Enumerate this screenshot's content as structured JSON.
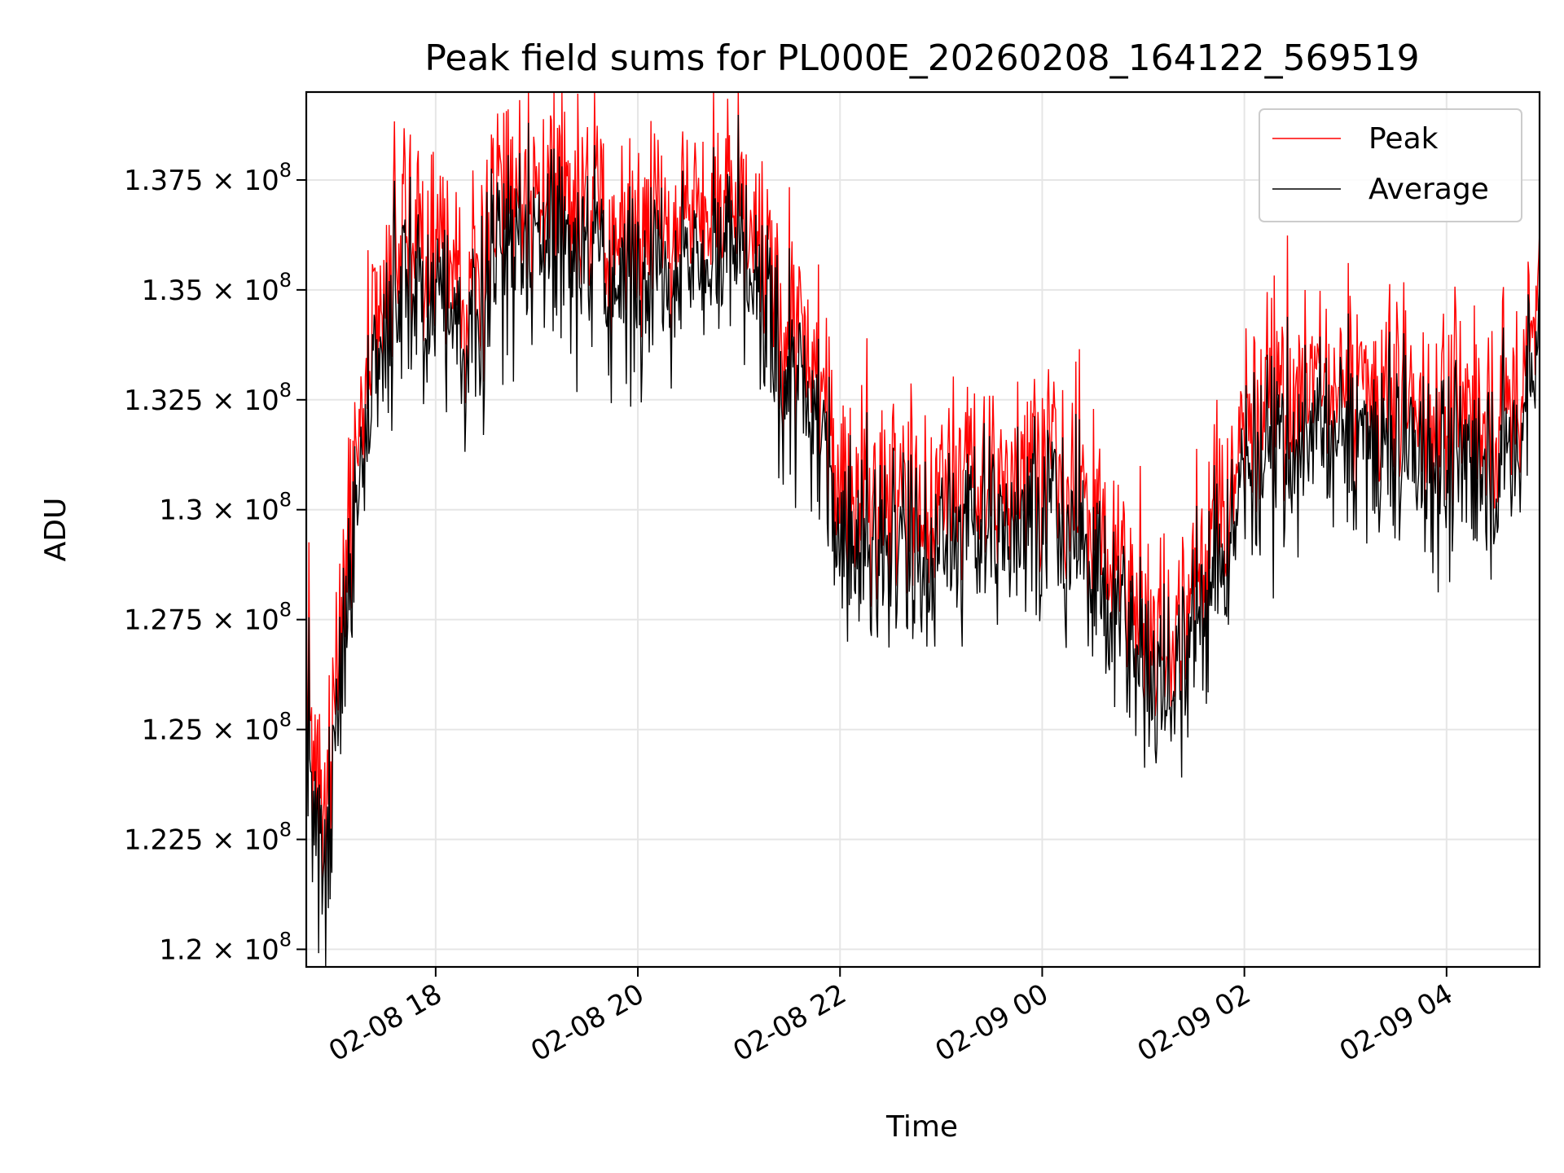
{
  "chart_data": {
    "type": "line",
    "title": "Peak field sums for PL000E_20260208_164122_569519",
    "xlabel": "Time",
    "ylabel": "ADU",
    "grid": true,
    "legend_position": "top-right",
    "x_range_hours": [
      16.72,
      4.92
    ],
    "xlim_hours_since_0208_00": [
      16.72,
      28.92
    ],
    "ylim": [
      119600000,
      139500000
    ],
    "x_ticks": [
      {
        "hours": 18,
        "label": "02-08 18"
      },
      {
        "hours": 20,
        "label": "02-08 20"
      },
      {
        "hours": 22,
        "label": "02-08 22"
      },
      {
        "hours": 24,
        "label": "02-09 00"
      },
      {
        "hours": 26,
        "label": "02-09 02"
      },
      {
        "hours": 28,
        "label": "02-09 04"
      }
    ],
    "y_ticks": [
      {
        "value": 120000000,
        "mantissa": "1.2",
        "base": "10",
        "exp": "8"
      },
      {
        "value": 122500000,
        "mantissa": "1.225",
        "base": "10",
        "exp": "8"
      },
      {
        "value": 125000000,
        "mantissa": "1.25",
        "base": "10",
        "exp": "8"
      },
      {
        "value": 127500000,
        "mantissa": "1.275",
        "base": "10",
        "exp": "8"
      },
      {
        "value": 130000000,
        "mantissa": "1.3",
        "base": "10",
        "exp": "8"
      },
      {
        "value": 132500000,
        "mantissa": "1.325",
        "base": "10",
        "exp": "8"
      },
      {
        "value": 135000000,
        "mantissa": "1.35",
        "base": "10",
        "exp": "8"
      },
      {
        "value": 137500000,
        "mantissa": "1.375",
        "base": "10",
        "exp": "8"
      }
    ],
    "series": [
      {
        "name": "Peak",
        "color": "#ff0000",
        "offset": 600000,
        "noise": 700000
      },
      {
        "name": "Average",
        "color": "#000000",
        "offset": 0,
        "noise": 1200000
      }
    ],
    "trend": {
      "x_hours": [
        16.72,
        16.8,
        16.9,
        17.0,
        17.15,
        17.3,
        17.5,
        17.7,
        18.0,
        18.3,
        18.6,
        19.0,
        19.4,
        19.8,
        20.2,
        20.6,
        21.0,
        21.4,
        21.6,
        21.8,
        22.0,
        22.4,
        22.8,
        23.2,
        23.6,
        24.0,
        24.4,
        24.8,
        25.0,
        25.2,
        25.5,
        25.8,
        26.0,
        26.4,
        26.8,
        27.2,
        27.6,
        28.0,
        28.4,
        28.7,
        28.85,
        28.92
      ],
      "y": [
        126500000,
        122000000,
        121000000,
        124500000,
        129000000,
        131000000,
        133500000,
        135500000,
        134500000,
        133500000,
        135800000,
        136300000,
        136000000,
        135000000,
        135500000,
        135800000,
        135700000,
        133300000,
        132500000,
        131800000,
        129800000,
        129200000,
        129000000,
        129300000,
        129700000,
        130400000,
        129000000,
        127400000,
        126200000,
        126100000,
        127400000,
        128800000,
        130700000,
        131300000,
        131900000,
        131500000,
        131300000,
        130900000,
        131000000,
        131200000,
        133500000,
        135000000
      ]
    }
  }
}
